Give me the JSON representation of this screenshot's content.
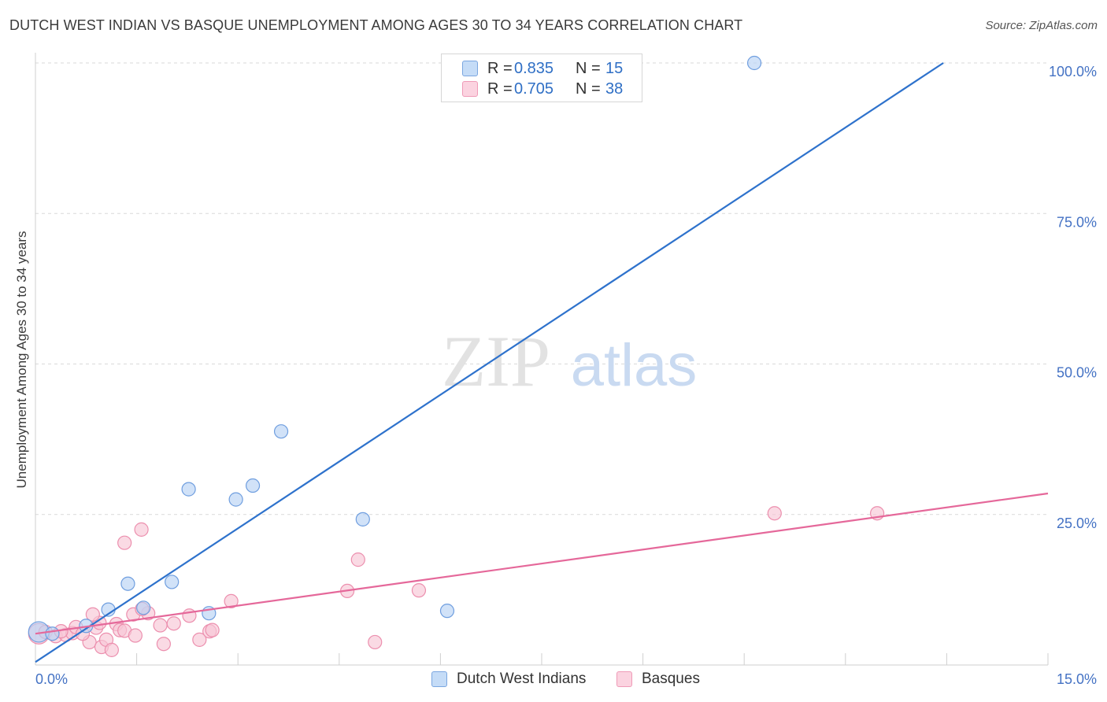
{
  "header": {
    "title": "DUTCH WEST INDIAN VS BASQUE UNEMPLOYMENT AMONG AGES 30 TO 34 YEARS CORRELATION CHART",
    "source": "Source: ZipAtlas.com"
  },
  "watermark": {
    "zip": "ZIP",
    "atlas": "atlas"
  },
  "legend_top": {
    "rows": [
      {
        "r_label": "R =",
        "r_value": "0.835",
        "n_label": "N =",
        "n_value": "15"
      },
      {
        "r_label": "R =",
        "r_value": "0.705",
        "n_label": "N =",
        "n_value": "38"
      }
    ]
  },
  "legend_bottom": {
    "series1": "Dutch West Indians",
    "series2": "Basques"
  },
  "colors": {
    "blue_fill": "#b9d3f5",
    "blue_stroke": "#6f9edf",
    "blue_line": "#2e72cc",
    "pink_fill": "#f8c6d6",
    "pink_stroke": "#ec8fae",
    "pink_line": "#e5689a",
    "axis_text": "#4472c4",
    "grid": "#d9d9d9"
  },
  "chart_data": {
    "type": "scatter",
    "title": "DUTCH WEST INDIAN VS BASQUE UNEMPLOYMENT AMONG AGES 30 TO 34 YEARS CORRELATION CHART",
    "xlabel": "",
    "ylabel": "Unemployment Among Ages 30 to 34 years",
    "xlim": [
      0,
      15
    ],
    "ylim": [
      0,
      100
    ],
    "x_tick_labels": [
      "0.0%",
      "15.0%"
    ],
    "y_ticks": [
      25,
      50,
      75,
      100
    ],
    "y_tick_labels": [
      "25.0%",
      "50.0%",
      "75.0%",
      "100.0%"
    ],
    "grid": true,
    "series": [
      {
        "name": "Dutch West Indians",
        "r": 0.835,
        "n": 15,
        "points": [
          [
            0.05,
            5.5
          ],
          [
            0.75,
            6.5
          ],
          [
            1.08,
            9.2
          ],
          [
            1.37,
            13.5
          ],
          [
            1.6,
            9.5
          ],
          [
            2.02,
            13.8
          ],
          [
            2.27,
            29.2
          ],
          [
            2.57,
            8.6
          ],
          [
            2.97,
            27.5
          ],
          [
            3.22,
            29.8
          ],
          [
            3.64,
            38.8
          ],
          [
            4.85,
            24.2
          ],
          [
            6.1,
            9.0
          ],
          [
            10.65,
            100.0
          ],
          [
            0.25,
            5.2
          ]
        ],
        "trend": {
          "x0": 0,
          "y0": 0.5,
          "x1": 13.45,
          "y1": 100
        }
      },
      {
        "name": "Basques",
        "r": 0.705,
        "n": 38,
        "points": [
          [
            0.05,
            5.2
          ],
          [
            0.15,
            5.5
          ],
          [
            0.3,
            4.8
          ],
          [
            0.45,
            5.0
          ],
          [
            0.55,
            5.3
          ],
          [
            0.6,
            6.3
          ],
          [
            0.9,
            6.2
          ],
          [
            0.95,
            7.0
          ],
          [
            0.85,
            8.4
          ],
          [
            0.8,
            3.8
          ],
          [
            0.98,
            3.0
          ],
          [
            1.05,
            4.2
          ],
          [
            1.13,
            2.5
          ],
          [
            1.2,
            6.8
          ],
          [
            1.25,
            5.8
          ],
          [
            1.32,
            5.7
          ],
          [
            1.45,
            8.4
          ],
          [
            1.48,
            4.9
          ],
          [
            1.57,
            22.5
          ],
          [
            1.32,
            20.3
          ],
          [
            1.67,
            8.6
          ],
          [
            1.85,
            6.6
          ],
          [
            1.9,
            3.5
          ],
          [
            2.05,
            6.9
          ],
          [
            2.28,
            8.2
          ],
          [
            2.43,
            4.2
          ],
          [
            2.58,
            5.6
          ],
          [
            2.62,
            5.8
          ],
          [
            2.9,
            10.6
          ],
          [
            4.62,
            12.3
          ],
          [
            4.78,
            17.5
          ],
          [
            5.03,
            3.8
          ],
          [
            5.68,
            12.4
          ],
          [
            10.95,
            25.2
          ],
          [
            12.47,
            25.2
          ],
          [
            0.38,
            5.6
          ],
          [
            0.7,
            5.2
          ],
          [
            1.58,
            9.3
          ]
        ],
        "trend": {
          "x0": 0,
          "y0": 5.2,
          "x1": 15,
          "y1": 28.5
        }
      }
    ]
  }
}
